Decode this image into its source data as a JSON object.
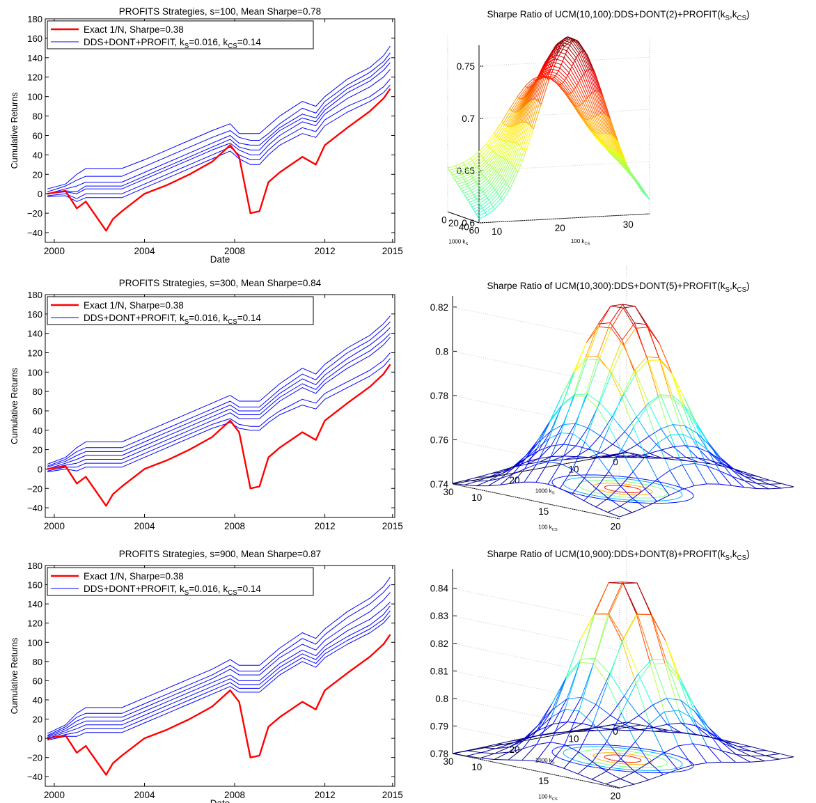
{
  "chart_data": [
    {
      "type": "line",
      "title": "PROFITS Strategies, s=100, Mean Sharpe=0.78",
      "xlabel": "Date",
      "ylabel": "Cumulative Returns",
      "xlim": [
        1999.6,
        2015.1
      ],
      "ylim": [
        -50,
        180
      ],
      "xticks": [
        "2000",
        "2004",
        "2008",
        "2012",
        "2015"
      ],
      "yticks": [
        "−40",
        "−20",
        "0",
        "20",
        "40",
        "60",
        "80",
        "100",
        "120",
        "140",
        "160",
        "180"
      ],
      "legend": {
        "placement": "top-left",
        "entries": [
          {
            "label_parts": [
              "Exact 1/N, Sharpe=0.38"
            ],
            "color": "#ff0000"
          },
          {
            "label_parts": [
              "DDS+DONT+PROFIT, k",
              "S",
              "=0.016, k",
              "CS",
              "=0.14"
            ],
            "color": "#0000ff"
          }
        ]
      },
      "x": [
        1999.7,
        2000.5,
        2001.0,
        2001.4,
        2002.3,
        2002.6,
        2003.0,
        2004.0,
        2005.0,
        2006.0,
        2007.0,
        2007.8,
        2008.2,
        2008.7,
        2009.1,
        2009.5,
        2010.0,
        2011.0,
        2011.6,
        2012.0,
        2013.0,
        2014.0,
        2014.6,
        2014.9
      ],
      "series": [
        {
          "name": "Exact 1/N, Sharpe=0.38",
          "color": "#ff0000",
          "width": 2.4,
          "values": [
            0,
            3,
            -15,
            -8,
            -38,
            -26,
            -18,
            0,
            9,
            20,
            33,
            50,
            38,
            -20,
            -18,
            12,
            22,
            38,
            30,
            50,
            68,
            85,
            98,
            108
          ]
        },
        {
          "name": "DDS+DONT+PROFIT",
          "color": "#0000ff",
          "width": 1,
          "values": [
            5,
            10,
            20,
            26,
            26,
            26,
            26,
            35,
            45,
            55,
            65,
            72,
            62,
            62,
            62,
            70,
            80,
            95,
            90,
            100,
            118,
            130,
            142,
            152
          ]
        },
        {
          "color": "#0000ff",
          "width": 1,
          "values": [
            2,
            8,
            14,
            18,
            18,
            18,
            18,
            28,
            38,
            48,
            58,
            65,
            58,
            55,
            55,
            62,
            72,
            88,
            83,
            95,
            112,
            125,
            136,
            145
          ]
        },
        {
          "color": "#0000ff",
          "width": 1,
          "values": [
            0,
            5,
            8,
            12,
            12,
            12,
            12,
            22,
            32,
            42,
            52,
            60,
            52,
            50,
            50,
            58,
            68,
            82,
            78,
            90,
            108,
            120,
            132,
            140
          ]
        },
        {
          "color": "#0000ff",
          "width": 1,
          "values": [
            0,
            3,
            2,
            8,
            8,
            8,
            8,
            18,
            28,
            38,
            48,
            56,
            48,
            45,
            45,
            55,
            65,
            78,
            74,
            86,
            104,
            116,
            127,
            135
          ]
        },
        {
          "color": "#0000ff",
          "width": 1,
          "values": [
            0,
            2,
            0,
            5,
            5,
            5,
            5,
            15,
            25,
            35,
            45,
            52,
            45,
            40,
            40,
            50,
            60,
            74,
            70,
            82,
            98,
            110,
            120,
            128
          ]
        },
        {
          "color": "#0000ff",
          "width": 1,
          "values": [
            -2,
            0,
            -5,
            0,
            0,
            0,
            0,
            10,
            20,
            30,
            40,
            48,
            40,
            35,
            35,
            45,
            55,
            68,
            64,
            76,
            90,
            100,
            110,
            118
          ]
        },
        {
          "color": "#0000ff",
          "width": 1,
          "values": [
            -3,
            -2,
            -8,
            -4,
            -4,
            -4,
            -4,
            6,
            16,
            26,
            36,
            44,
            36,
            30,
            30,
            40,
            50,
            62,
            58,
            70,
            84,
            95,
            104,
            112
          ]
        }
      ]
    },
    {
      "type": "surface",
      "title_parts": [
        "Sharpe Ratio of UCM(10,100):DDS+DONT(2)+PROFIT(k",
        "S",
        ",k",
        "CS",
        ")"
      ],
      "xlabel_parts": [
        "1000 k",
        "S"
      ],
      "ylabel_parts": [
        "100 k",
        "CS"
      ],
      "zticks": [
        "0.6",
        "0.65",
        "0.7",
        "0.75"
      ],
      "xticks": [
        "60",
        "40",
        "20",
        "0"
      ],
      "yticks": [
        "10",
        "20",
        "30"
      ],
      "zlim": [
        0.6,
        0.77
      ],
      "peak": 0.77
    },
    {
      "type": "line",
      "title": "PROFITS Strategies, s=300, Mean Sharpe=0.84",
      "xlabel": "",
      "ylabel": "Cumulative Returns",
      "xlim": [
        1999.6,
        2015.1
      ],
      "ylim": [
        -50,
        180
      ],
      "xticks": [
        "2000",
        "2004",
        "2008",
        "2012",
        "2015"
      ],
      "yticks": [
        "−40",
        "−20",
        "0",
        "20",
        "40",
        "60",
        "80",
        "100",
        "120",
        "140",
        "160",
        "180"
      ],
      "legend": {
        "placement": "top-left",
        "entries": [
          {
            "label_parts": [
              "Exact 1/N, Sharpe=0.38"
            ],
            "color": "#ff0000"
          },
          {
            "label_parts": [
              "DDS+DONT+PROFIT, k",
              "S",
              "=0.016, k",
              "CS",
              "=0.14"
            ],
            "color": "#0000ff"
          }
        ]
      },
      "x": [
        1999.7,
        2000.5,
        2001.0,
        2001.4,
        2002.3,
        2002.6,
        2003.0,
        2004.0,
        2005.0,
        2006.0,
        2007.0,
        2007.8,
        2008.2,
        2008.7,
        2009.1,
        2009.5,
        2010.0,
        2011.0,
        2011.6,
        2012.0,
        2013.0,
        2014.0,
        2014.6,
        2014.9
      ],
      "series": [
        {
          "name": "Exact 1/N, Sharpe=0.38",
          "color": "#ff0000",
          "width": 2.4,
          "values": [
            0,
            3,
            -15,
            -8,
            -38,
            -26,
            -18,
            0,
            9,
            20,
            33,
            50,
            38,
            -20,
            -18,
            12,
            22,
            38,
            30,
            50,
            68,
            85,
            98,
            108
          ]
        },
        {
          "name": "DDS+DONT+PROFIT",
          "color": "#0000ff",
          "width": 1,
          "values": [
            5,
            12,
            22,
            28,
            28,
            28,
            28,
            38,
            48,
            58,
            68,
            76,
            70,
            70,
            70,
            78,
            88,
            104,
            98,
            108,
            125,
            138,
            150,
            158
          ]
        },
        {
          "color": "#0000ff",
          "width": 1,
          "values": [
            3,
            10,
            18,
            22,
            22,
            22,
            22,
            32,
            42,
            52,
            62,
            70,
            64,
            64,
            64,
            72,
            82,
            98,
            92,
            102,
            120,
            133,
            145,
            152
          ]
        },
        {
          "color": "#0000ff",
          "width": 1,
          "values": [
            2,
            8,
            14,
            18,
            18,
            18,
            18,
            28,
            38,
            48,
            58,
            66,
            60,
            60,
            60,
            68,
            78,
            93,
            87,
            97,
            114,
            128,
            139,
            146
          ]
        },
        {
          "color": "#0000ff",
          "width": 1,
          "values": [
            0,
            6,
            10,
            14,
            14,
            14,
            14,
            24,
            34,
            44,
            54,
            62,
            56,
            56,
            56,
            64,
            74,
            88,
            82,
            92,
            109,
            122,
            133,
            140
          ]
        },
        {
          "color": "#0000ff",
          "width": 1,
          "values": [
            0,
            4,
            6,
            10,
            10,
            10,
            10,
            20,
            30,
            40,
            50,
            58,
            52,
            52,
            52,
            60,
            70,
            84,
            78,
            88,
            104,
            117,
            128,
            136
          ]
        },
        {
          "color": "#0000ff",
          "width": 1,
          "values": [
            -2,
            2,
            2,
            6,
            6,
            6,
            6,
            16,
            26,
            36,
            46,
            52,
            46,
            44,
            44,
            52,
            60,
            72,
            68,
            78,
            90,
            102,
            112,
            120
          ]
        },
        {
          "color": "#0000ff",
          "width": 1,
          "values": [
            -3,
            0,
            -2,
            2,
            2,
            2,
            2,
            12,
            22,
            32,
            42,
            48,
            42,
            40,
            40,
            48,
            56,
            66,
            62,
            72,
            84,
            96,
            106,
            114
          ]
        }
      ]
    },
    {
      "type": "surface",
      "title_parts": [
        "Sharpe Ratio of UCM(10,300):DDS+DONT(5)+PROFIT(k",
        "S",
        ",k",
        "CS",
        ")"
      ],
      "xlabel_parts": [
        "1000 k",
        "S"
      ],
      "ylabel_parts": [
        "100 k",
        "CS"
      ],
      "zticks": [
        "0.74",
        "0.76",
        "0.78",
        "0.8",
        "0.82"
      ],
      "xticks": [
        "30",
        "20",
        "10",
        "0"
      ],
      "yticks": [
        "10",
        "15",
        "20"
      ],
      "zlim": [
        0.74,
        0.825
      ],
      "peak": 0.825
    },
    {
      "type": "line",
      "title": "PROFITS Strategies, s=900, Mean Sharpe=0.87",
      "xlabel": "Date",
      "ylabel": "Cumulative Returns",
      "xlim": [
        1999.6,
        2015.1
      ],
      "ylim": [
        -50,
        180
      ],
      "xticks": [
        "2000",
        "2004",
        "2008",
        "2012",
        "2015"
      ],
      "yticks": [
        "−40",
        "−20",
        "0",
        "20",
        "40",
        "60",
        "80",
        "100",
        "120",
        "140",
        "160",
        "180"
      ],
      "legend": {
        "placement": "top-left",
        "entries": [
          {
            "label_parts": [
              "Exact 1/N, Sharpe=0.38"
            ],
            "color": "#ff0000"
          },
          {
            "label_parts": [
              "DDS+DONT+PROFIT, k",
              "S",
              "=0.016, k",
              "CS",
              "=0.14"
            ],
            "color": "#0000ff"
          }
        ]
      },
      "x": [
        1999.7,
        2000.5,
        2001.0,
        2001.4,
        2002.3,
        2002.6,
        2003.0,
        2004.0,
        2005.0,
        2006.0,
        2007.0,
        2007.8,
        2008.2,
        2008.7,
        2009.1,
        2009.5,
        2010.0,
        2011.0,
        2011.6,
        2012.0,
        2013.0,
        2014.0,
        2014.6,
        2014.9
      ],
      "series": [
        {
          "name": "Exact 1/N, Sharpe=0.38",
          "color": "#ff0000",
          "width": 2.4,
          "values": [
            0,
            3,
            -15,
            -8,
            -38,
            -26,
            -18,
            0,
            9,
            20,
            33,
            50,
            38,
            -20,
            -18,
            12,
            22,
            38,
            30,
            50,
            68,
            85,
            98,
            108
          ]
        },
        {
          "name": "DDS+DONT+PROFIT",
          "color": "#0000ff",
          "width": 1,
          "values": [
            5,
            14,
            26,
            32,
            32,
            32,
            32,
            42,
            52,
            62,
            72,
            82,
            76,
            76,
            76,
            84,
            94,
            110,
            104,
            114,
            132,
            146,
            158,
            168
          ]
        },
        {
          "color": "#0000ff",
          "width": 1,
          "values": [
            3,
            12,
            22,
            26,
            26,
            26,
            26,
            36,
            46,
            56,
            66,
            76,
            70,
            70,
            70,
            78,
            88,
            104,
            98,
            108,
            126,
            140,
            152,
            160
          ]
        },
        {
          "color": "#0000ff",
          "width": 1,
          "values": [
            2,
            10,
            18,
            22,
            22,
            22,
            22,
            32,
            42,
            52,
            62,
            72,
            66,
            66,
            66,
            74,
            84,
            98,
            92,
            102,
            118,
            132,
            144,
            152
          ]
        },
        {
          "color": "#0000ff",
          "width": 1,
          "values": [
            1,
            8,
            14,
            18,
            18,
            18,
            18,
            28,
            38,
            48,
            58,
            66,
            60,
            60,
            60,
            68,
            78,
            92,
            86,
            96,
            112,
            124,
            135,
            142
          ]
        },
        {
          "color": "#0000ff",
          "width": 1,
          "values": [
            0,
            6,
            10,
            14,
            14,
            14,
            14,
            24,
            34,
            44,
            54,
            62,
            56,
            56,
            56,
            64,
            74,
            88,
            82,
            92,
            106,
            118,
            129,
            138
          ]
        },
        {
          "color": "#0000ff",
          "width": 1,
          "values": [
            -1,
            4,
            6,
            10,
            10,
            10,
            10,
            20,
            30,
            40,
            50,
            58,
            52,
            52,
            52,
            60,
            70,
            84,
            78,
            88,
            102,
            114,
            124,
            133
          ]
        },
        {
          "color": "#0000ff",
          "width": 1,
          "values": [
            -2,
            2,
            2,
            6,
            6,
            6,
            6,
            16,
            26,
            36,
            46,
            54,
            48,
            48,
            48,
            56,
            66,
            80,
            74,
            84,
            98,
            110,
            120,
            128
          ]
        }
      ]
    },
    {
      "type": "surface",
      "title_parts": [
        "Sharpe Ratio of UCM(10,900):DDS+DONT(8)+PROFIT(k",
        "S",
        ",k",
        "CS",
        ")"
      ],
      "xlabel_parts": [
        "1000 k",
        "S"
      ],
      "ylabel_parts": [
        "100 k",
        "CS"
      ],
      "zticks": [
        "0.78",
        "0.79",
        "0.8",
        "0.81",
        "0.82",
        "0.83",
        "0.84"
      ],
      "xticks": [
        "30",
        "20",
        "10",
        "0"
      ],
      "yticks": [
        "10",
        "15",
        "20"
      ],
      "zlim": [
        0.78,
        0.847
      ],
      "peak": 0.847
    }
  ]
}
